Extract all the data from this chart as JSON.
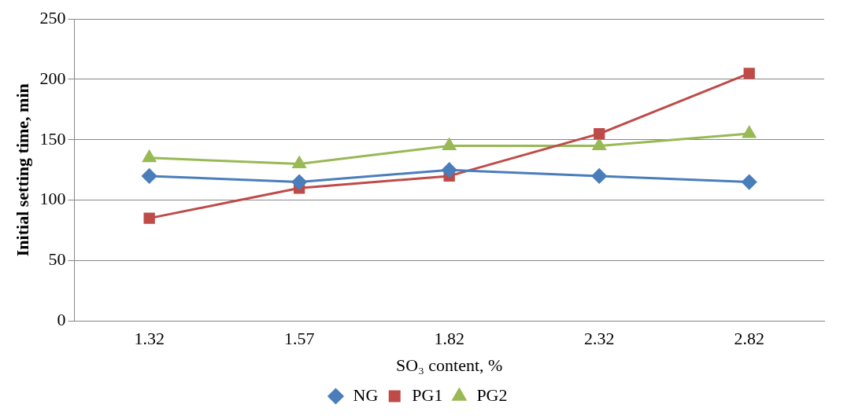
{
  "chart_data": {
    "type": "line",
    "xlabel": "SO₃ content, %",
    "ylabel": "Initial setting time, min",
    "categories": [
      "1.32",
      "1.57",
      "1.82",
      "2.32",
      "2.82"
    ],
    "series": [
      {
        "name": "NG",
        "color": "#4a7ebb",
        "marker": "diamond",
        "values": [
          120,
          115,
          125,
          120,
          115
        ]
      },
      {
        "name": "PG1",
        "color": "#be4b48",
        "marker": "square",
        "values": [
          85,
          110,
          120,
          155,
          205
        ]
      },
      {
        "name": "PG2",
        "color": "#98b954",
        "marker": "triangle",
        "values": [
          135,
          130,
          145,
          145,
          155
        ]
      }
    ],
    "ylim": [
      0,
      250
    ],
    "yticks": [
      0,
      50,
      100,
      150,
      200,
      250
    ],
    "grid": "y",
    "legend": "bottom",
    "line_style": "solid"
  }
}
